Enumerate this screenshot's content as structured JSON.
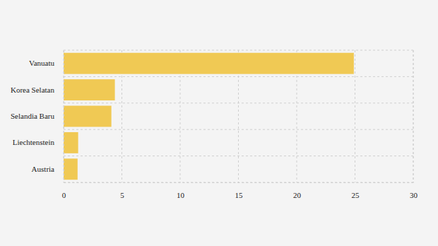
{
  "chart_data": {
    "type": "bar",
    "orientation": "horizontal",
    "categories": [
      "Vanuatu",
      "Korea Selatan",
      "Selandia Baru",
      "Liechtenstein",
      "Austria"
    ],
    "values": [
      24.9,
      4.4,
      4.1,
      1.25,
      1.2
    ],
    "color": "#f0c954",
    "xlim": [
      0,
      30
    ],
    "xticks": [
      0,
      5,
      10,
      15,
      20,
      25,
      30
    ],
    "grid": true
  }
}
